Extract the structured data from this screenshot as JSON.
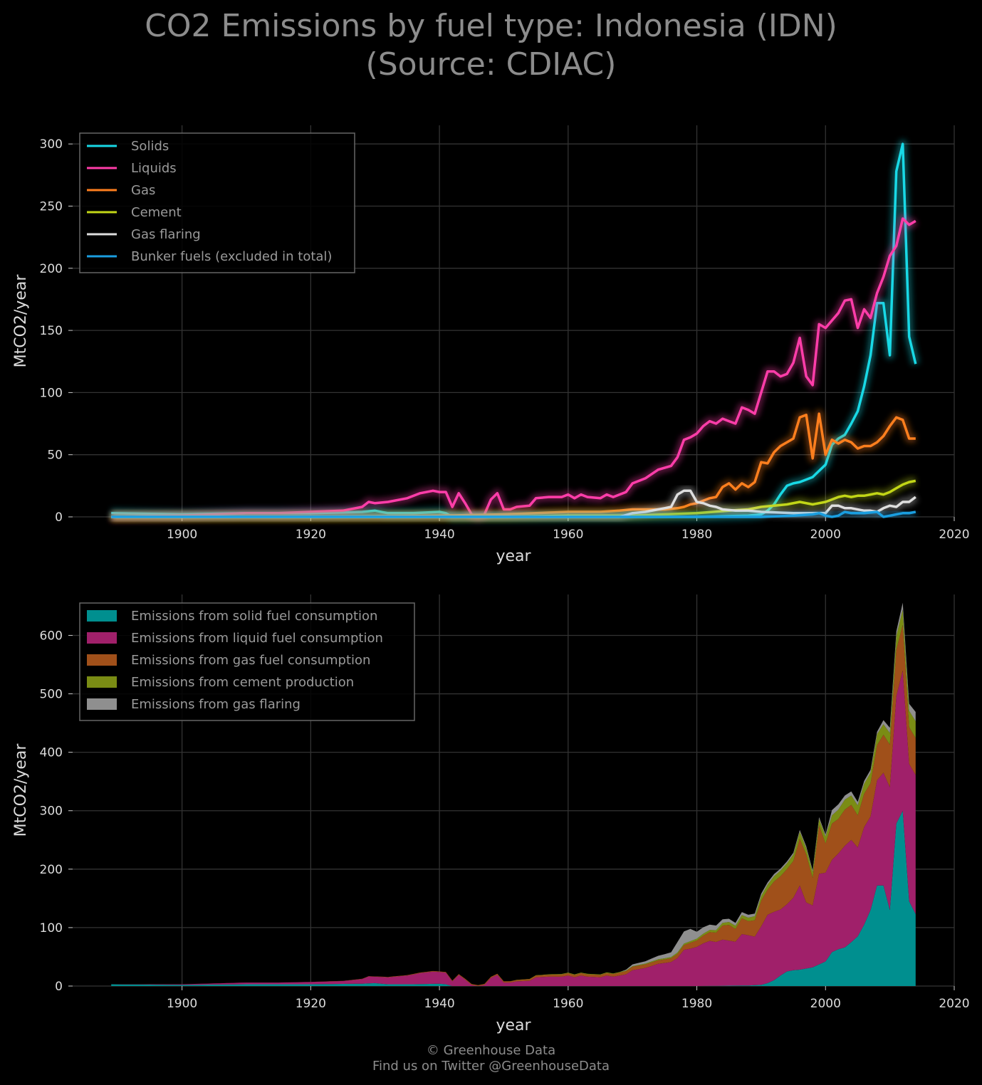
{
  "title_line1": "CO2 Emissions by fuel type: Indonesia (IDN)",
  "title_line2": "(Source: CDIAC)",
  "footer_line1": "© Greenhouse Data",
  "footer_line2": "Find us on Twitter @GreenhouseData",
  "chart_data": [
    {
      "type": "line",
      "xlabel": "year",
      "ylabel": "MtCO2/year",
      "xlim": [
        1883,
        2020
      ],
      "ylim": [
        0,
        315
      ],
      "xticks": [
        1900,
        1920,
        1940,
        1960,
        1980,
        2000,
        2020
      ],
      "yticks": [
        0,
        50,
        100,
        150,
        200,
        250,
        300
      ],
      "grid": true,
      "legend_position": "top-left",
      "series": [
        {
          "name": "Solids",
          "color": "#18d9e6",
          "points": [
            [
              1889,
              3
            ],
            [
              1900,
              2
            ],
            [
              1910,
              3
            ],
            [
              1920,
              3
            ],
            [
              1928,
              4
            ],
            [
              1930,
              5
            ],
            [
              1932,
              3
            ],
            [
              1936,
              3
            ],
            [
              1940,
              4
            ],
            [
              1941,
              3
            ],
            [
              1942,
              0
            ],
            [
              1948,
              0
            ],
            [
              1960,
              0
            ],
            [
              1980,
              0
            ],
            [
              1988,
              1
            ],
            [
              1990,
              2
            ],
            [
              1991,
              5
            ],
            [
              1992,
              10
            ],
            [
              1993,
              18
            ],
            [
              1994,
              25
            ],
            [
              1995,
              27
            ],
            [
              1996,
              28
            ],
            [
              1997,
              30
            ],
            [
              1998,
              32
            ],
            [
              1999,
              37
            ],
            [
              2000,
              42
            ],
            [
              2001,
              58
            ],
            [
              2002,
              63
            ],
            [
              2003,
              66
            ],
            [
              2004,
              75
            ],
            [
              2005,
              85
            ],
            [
              2006,
              105
            ],
            [
              2007,
              130
            ],
            [
              2008,
              172
            ],
            [
              2009,
              172
            ],
            [
              2010,
              130
            ],
            [
              2011,
              278
            ],
            [
              2012,
              300
            ],
            [
              2013,
              145
            ],
            [
              2014,
              123
            ]
          ]
        },
        {
          "name": "Liquids",
          "color": "#ff3da9",
          "points": [
            [
              1889,
              0
            ],
            [
              1900,
              1
            ],
            [
              1905,
              2
            ],
            [
              1910,
              3
            ],
            [
              1915,
              3
            ],
            [
              1920,
              4
            ],
            [
              1925,
              5
            ],
            [
              1928,
              8
            ],
            [
              1929,
              12
            ],
            [
              1930,
              11
            ],
            [
              1932,
              12
            ],
            [
              1935,
              15
            ],
            [
              1937,
              19
            ],
            [
              1939,
              21
            ],
            [
              1940,
              20
            ],
            [
              1941,
              20
            ],
            [
              1942,
              8
            ],
            [
              1943,
              19
            ],
            [
              1944,
              11
            ],
            [
              1945,
              2
            ],
            [
              1946,
              0
            ],
            [
              1947,
              2
            ],
            [
              1948,
              14
            ],
            [
              1949,
              19
            ],
            [
              1950,
              6
            ],
            [
              1951,
              6
            ],
            [
              1952,
              8
            ],
            [
              1954,
              9
            ],
            [
              1955,
              15
            ],
            [
              1957,
              16
            ],
            [
              1959,
              16
            ],
            [
              1960,
              18
            ],
            [
              1961,
              15
            ],
            [
              1962,
              18
            ],
            [
              1963,
              16
            ],
            [
              1965,
              15
            ],
            [
              1966,
              18
            ],
            [
              1967,
              16
            ],
            [
              1968,
              18
            ],
            [
              1969,
              20
            ],
            [
              1970,
              27
            ],
            [
              1972,
              31
            ],
            [
              1974,
              38
            ],
            [
              1976,
              41
            ],
            [
              1977,
              48
            ],
            [
              1978,
              62
            ],
            [
              1979,
              64
            ],
            [
              1980,
              67
            ],
            [
              1981,
              73
            ],
            [
              1982,
              77
            ],
            [
              1983,
              75
            ],
            [
              1984,
              79
            ],
            [
              1985,
              77
            ],
            [
              1986,
              75
            ],
            [
              1987,
              88
            ],
            [
              1988,
              86
            ],
            [
              1989,
              83
            ],
            [
              1990,
              100
            ],
            [
              1991,
              117
            ],
            [
              1992,
              117
            ],
            [
              1993,
              113
            ],
            [
              1994,
              115
            ],
            [
              1995,
              124
            ],
            [
              1996,
              144
            ],
            [
              1997,
              113
            ],
            [
              1998,
              106
            ],
            [
              1999,
              155
            ],
            [
              2000,
              152
            ],
            [
              2001,
              158
            ],
            [
              2002,
              164
            ],
            [
              2003,
              174
            ],
            [
              2004,
              175
            ],
            [
              2005,
              152
            ],
            [
              2006,
              167
            ],
            [
              2007,
              160
            ],
            [
              2008,
              180
            ],
            [
              2009,
              193
            ],
            [
              2010,
              210
            ],
            [
              2011,
              218
            ],
            [
              2012,
              240
            ],
            [
              2013,
              235
            ],
            [
              2014,
              238
            ]
          ]
        },
        {
          "name": "Gas",
          "color": "#ff7f1e",
          "points": [
            [
              1889,
              0
            ],
            [
              1920,
              0
            ],
            [
              1940,
              1
            ],
            [
              1950,
              2
            ],
            [
              1955,
              3
            ],
            [
              1960,
              4
            ],
            [
              1965,
              4
            ],
            [
              1968,
              5
            ],
            [
              1970,
              6
            ],
            [
              1975,
              6
            ],
            [
              1977,
              7
            ],
            [
              1978,
              8
            ],
            [
              1979,
              10
            ],
            [
              1980,
              11
            ],
            [
              1981,
              13
            ],
            [
              1982,
              15
            ],
            [
              1983,
              16
            ],
            [
              1984,
              24
            ],
            [
              1985,
              27
            ],
            [
              1986,
              22
            ],
            [
              1987,
              27
            ],
            [
              1988,
              24
            ],
            [
              1989,
              28
            ],
            [
              1990,
              44
            ],
            [
              1991,
              43
            ],
            [
              1992,
              52
            ],
            [
              1993,
              57
            ],
            [
              1994,
              60
            ],
            [
              1995,
              63
            ],
            [
              1996,
              80
            ],
            [
              1997,
              82
            ],
            [
              1998,
              47
            ],
            [
              1999,
              83
            ],
            [
              2000,
              50
            ],
            [
              2001,
              62
            ],
            [
              2002,
              59
            ],
            [
              2003,
              62
            ],
            [
              2004,
              60
            ],
            [
              2005,
              55
            ],
            [
              2006,
              57
            ],
            [
              2007,
              57
            ],
            [
              2008,
              60
            ],
            [
              2009,
              65
            ],
            [
              2010,
              73
            ],
            [
              2011,
              80
            ],
            [
              2012,
              78
            ],
            [
              2013,
              63
            ],
            [
              2014,
              63
            ]
          ]
        },
        {
          "name": "Cement",
          "color": "#c2d616",
          "points": [
            [
              1889,
              0
            ],
            [
              1920,
              0
            ],
            [
              1940,
              0
            ],
            [
              1950,
              0
            ],
            [
              1960,
              1
            ],
            [
              1970,
              1
            ],
            [
              1975,
              2
            ],
            [
              1980,
              3
            ],
            [
              1985,
              5
            ],
            [
              1988,
              6
            ],
            [
              1990,
              8
            ],
            [
              1992,
              9
            ],
            [
              1994,
              10
            ],
            [
              1996,
              12
            ],
            [
              1998,
              10
            ],
            [
              2000,
              12
            ],
            [
              2001,
              14
            ],
            [
              2002,
              16
            ],
            [
              2003,
              17
            ],
            [
              2004,
              16
            ],
            [
              2005,
              17
            ],
            [
              2006,
              17
            ],
            [
              2007,
              18
            ],
            [
              2008,
              19
            ],
            [
              2009,
              18
            ],
            [
              2010,
              20
            ],
            [
              2011,
              23
            ],
            [
              2012,
              26
            ],
            [
              2013,
              28
            ],
            [
              2014,
              29
            ]
          ]
        },
        {
          "name": "Gas flaring",
          "color": "#dedede",
          "points": [
            [
              1889,
              0
            ],
            [
              1960,
              0
            ],
            [
              1968,
              0
            ],
            [
              1970,
              3
            ],
            [
              1972,
              4
            ],
            [
              1974,
              6
            ],
            [
              1975,
              7
            ],
            [
              1976,
              8
            ],
            [
              1977,
              18
            ],
            [
              1978,
              21
            ],
            [
              1979,
              21
            ],
            [
              1980,
              12
            ],
            [
              1981,
              11
            ],
            [
              1982,
              9
            ],
            [
              1983,
              8
            ],
            [
              1984,
              6
            ],
            [
              1986,
              5
            ],
            [
              1988,
              5
            ],
            [
              1990,
              4
            ],
            [
              1995,
              3
            ],
            [
              1998,
              3
            ],
            [
              2000,
              3
            ],
            [
              2001,
              9
            ],
            [
              2002,
              9
            ],
            [
              2003,
              7
            ],
            [
              2004,
              7
            ],
            [
              2006,
              5
            ],
            [
              2007,
              5
            ],
            [
              2008,
              4
            ],
            [
              2009,
              7
            ],
            [
              2010,
              9
            ],
            [
              2011,
              8
            ],
            [
              2012,
              12
            ],
            [
              2013,
              12
            ],
            [
              2014,
              16
            ]
          ]
        },
        {
          "name": "Bunker fuels (excluded in total)",
          "color": "#1a9ee0",
          "points": [
            [
              1889,
              0
            ],
            [
              1990,
              0
            ],
            [
              1995,
              1
            ],
            [
              1998,
              2
            ],
            [
              1999,
              3
            ],
            [
              2000,
              1
            ],
            [
              2001,
              0
            ],
            [
              2002,
              1
            ],
            [
              2003,
              4
            ],
            [
              2004,
              3
            ],
            [
              2006,
              3
            ],
            [
              2008,
              4
            ],
            [
              2009,
              0
            ],
            [
              2010,
              1
            ],
            [
              2011,
              2
            ],
            [
              2012,
              3
            ],
            [
              2013,
              3
            ],
            [
              2014,
              4
            ]
          ]
        }
      ]
    },
    {
      "type": "area",
      "stacked": true,
      "xlabel": "year",
      "ylabel": "MtCO2/year",
      "xlim": [
        1883,
        2020
      ],
      "ylim": [
        0,
        670
      ],
      "xticks": [
        1900,
        1920,
        1940,
        1960,
        1980,
        2000,
        2020
      ],
      "yticks": [
        0,
        100,
        200,
        300,
        400,
        500,
        600
      ],
      "grid": true,
      "legend_position": "top-left",
      "series": [
        {
          "name": "Emissions from solid fuel consumption",
          "color": "#008f8f",
          "source_series": "Solids"
        },
        {
          "name": "Emissions from liquid fuel consumption",
          "color": "#a0206a",
          "source_series": "Liquids"
        },
        {
          "name": "Emissions from gas fuel consumption",
          "color": "#a0501a",
          "source_series": "Gas"
        },
        {
          "name": "Emissions from cement production",
          "color": "#7a8c14",
          "source_series": "Cement"
        },
        {
          "name": "Emissions from gas flaring",
          "color": "#8f8f8f",
          "source_series": "Gas flaring"
        }
      ]
    }
  ]
}
